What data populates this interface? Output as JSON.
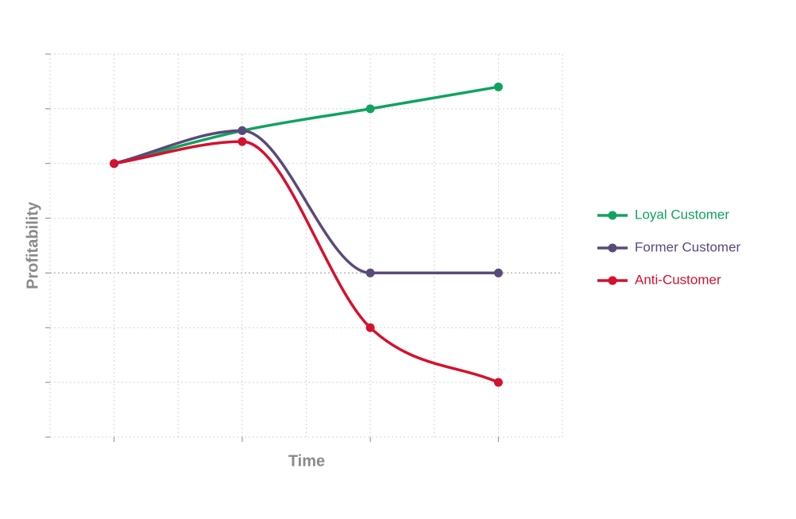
{
  "chart_data": {
    "type": "line",
    "x_label": "Time",
    "y_label": "Profitability",
    "x": [
      1,
      2,
      3,
      4
    ],
    "xlim": [
      0.5,
      4.5
    ],
    "xticks": [
      1,
      2,
      3,
      4
    ],
    "xminor": [
      1.5,
      2.5,
      3.5,
      4.5
    ],
    "ylim": [
      -3,
      4
    ],
    "yticks": [
      -3,
      -2,
      -1,
      0,
      1,
      2,
      3,
      4
    ],
    "grid": true,
    "smooth": true,
    "legend": "right",
    "series": [
      {
        "name": "Loyal Customer",
        "color": "#10a35f",
        "values": [
          2,
          2.6,
          3,
          3.4
        ]
      },
      {
        "name": "Former Customer",
        "color": "#5a4a7a",
        "values": [
          2,
          2.6,
          0,
          0
        ]
      },
      {
        "name": "Anti-Customer",
        "color": "#d4112e",
        "values": [
          2,
          2.4,
          -1,
          -2
        ]
      }
    ]
  }
}
